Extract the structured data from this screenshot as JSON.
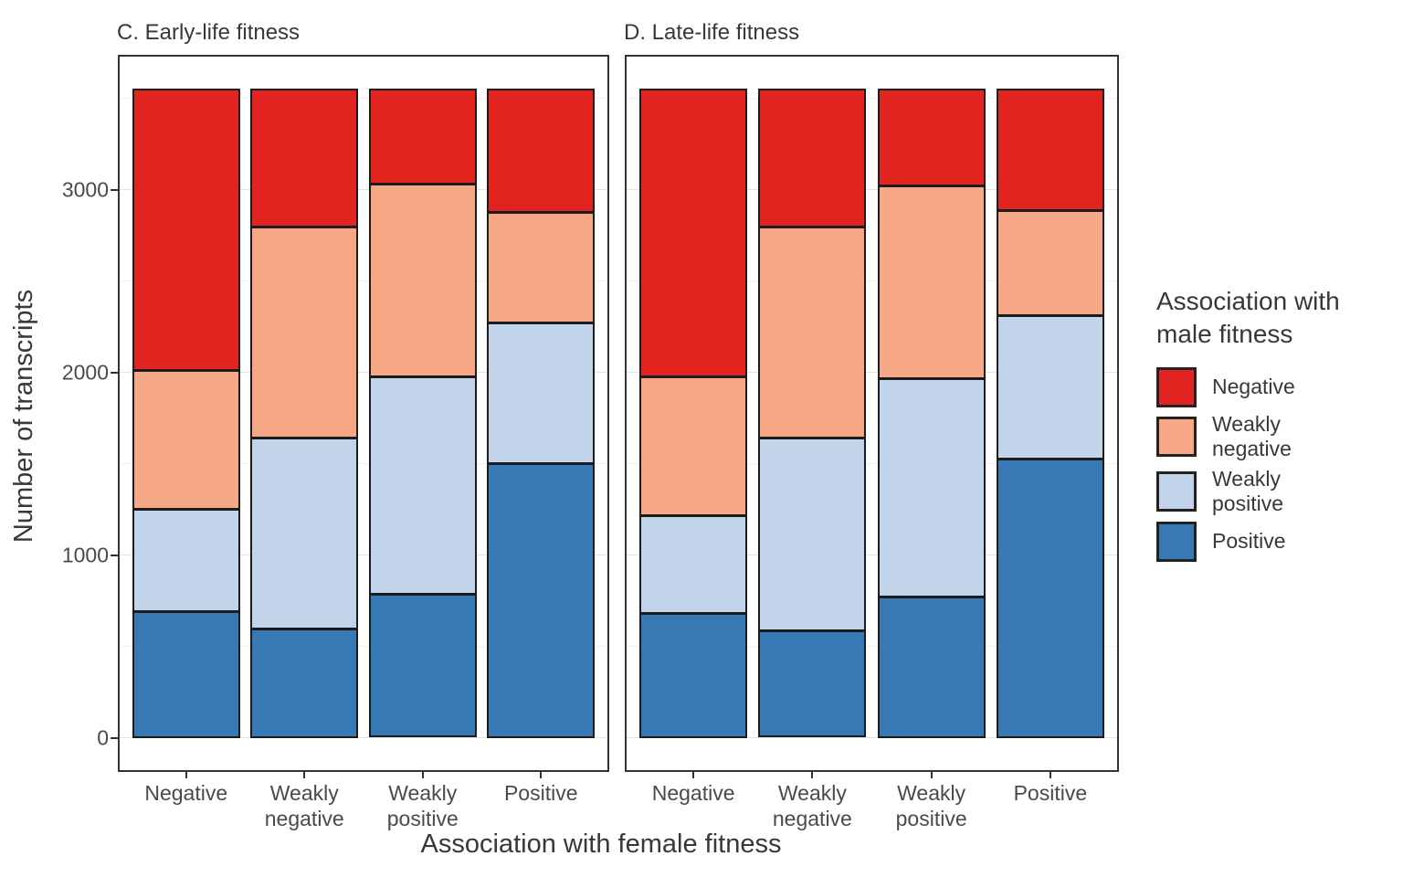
{
  "chart_data": {
    "type": "bar",
    "stacked": true,
    "title": "",
    "xlabel": "Association with female fitness",
    "ylabel": "Number of transcripts",
    "categories": [
      "Negative",
      "Weakly negative",
      "Weakly positive",
      "Positive"
    ],
    "stack_order_bottom_to_top": [
      "Positive",
      "Weakly positive",
      "Weakly negative",
      "Negative"
    ],
    "colors": {
      "Negative": "#e2231f",
      "Weakly negative": "#f6a886",
      "Weakly positive": "#c1d4ea",
      "Positive": "#3779b5"
    },
    "outline_color": "#1c1c1c",
    "y_axis": {
      "major_ticks": [
        0,
        1000,
        2000,
        3000
      ],
      "minor_ticks": [
        500,
        1500,
        2500,
        3500
      ],
      "ylim": [
        0,
        3733
      ]
    },
    "facets": [
      {
        "label": "C. Early-life fitness",
        "series": [
          {
            "name": "Positive",
            "values": [
              685,
              590,
              780,
              1510
            ]
          },
          {
            "name": "Weakly positive",
            "values": [
              555,
              1050,
              1200,
              770
            ]
          },
          {
            "name": "Weakly negative",
            "values": [
              760,
              1160,
              1060,
              600
            ]
          },
          {
            "name": "Negative",
            "values": [
              1555,
              755,
              515,
              675
            ]
          }
        ]
      },
      {
        "label": "D. Late-life fitness",
        "series": [
          {
            "name": "Positive",
            "values": [
              675,
              580,
              765,
              1535
            ]
          },
          {
            "name": "Weakly positive",
            "values": [
              530,
              1055,
              1205,
              785
            ]
          },
          {
            "name": "Weakly negative",
            "values": [
              760,
              1165,
              1060,
              570
            ]
          },
          {
            "name": "Negative",
            "values": [
              1590,
              755,
              525,
              665
            ]
          }
        ]
      }
    ],
    "legend": {
      "title_lines": [
        "Association with",
        "male fitness"
      ],
      "items": [
        {
          "label": "Negative",
          "color": "#e2231f"
        },
        {
          "label": "Weakly negative",
          "color": "#f6a886"
        },
        {
          "label": "Weakly positive",
          "color": "#c1d4ea"
        },
        {
          "label": "Positive",
          "color": "#3779b5"
        }
      ]
    }
  }
}
